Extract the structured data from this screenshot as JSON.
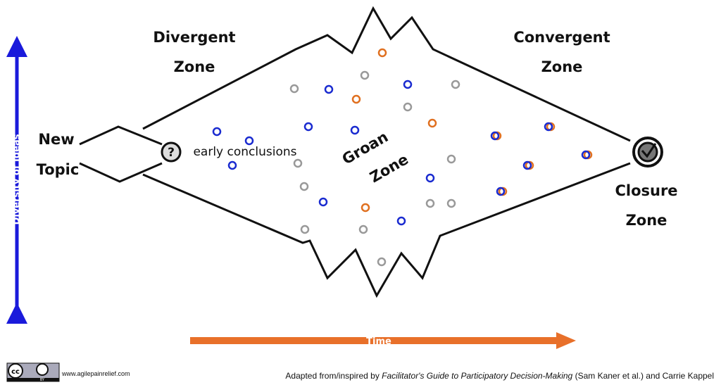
{
  "labels": {
    "divergent": [
      "Divergent",
      "Zone"
    ],
    "convergent": [
      "Convergent",
      "Zone"
    ],
    "new_topic": [
      "New",
      "Topic"
    ],
    "closure": [
      "Closure",
      "Zone"
    ],
    "groan": [
      "Groan",
      "Zone"
    ],
    "early": "early conclusions",
    "question": "?"
  },
  "axes": {
    "y": "Diversity of Ideas",
    "x": "Time"
  },
  "footer": {
    "site": "www.agilepainrelief.com",
    "cc": "cc",
    "by": "BY",
    "credit_pre": "Adapted from/inspired by ",
    "credit_book": "Facilitator's Guide to Participatory Decision-Making",
    "credit_post": " (Sam Kaner et al.) and Carrie Kappel"
  }
}
